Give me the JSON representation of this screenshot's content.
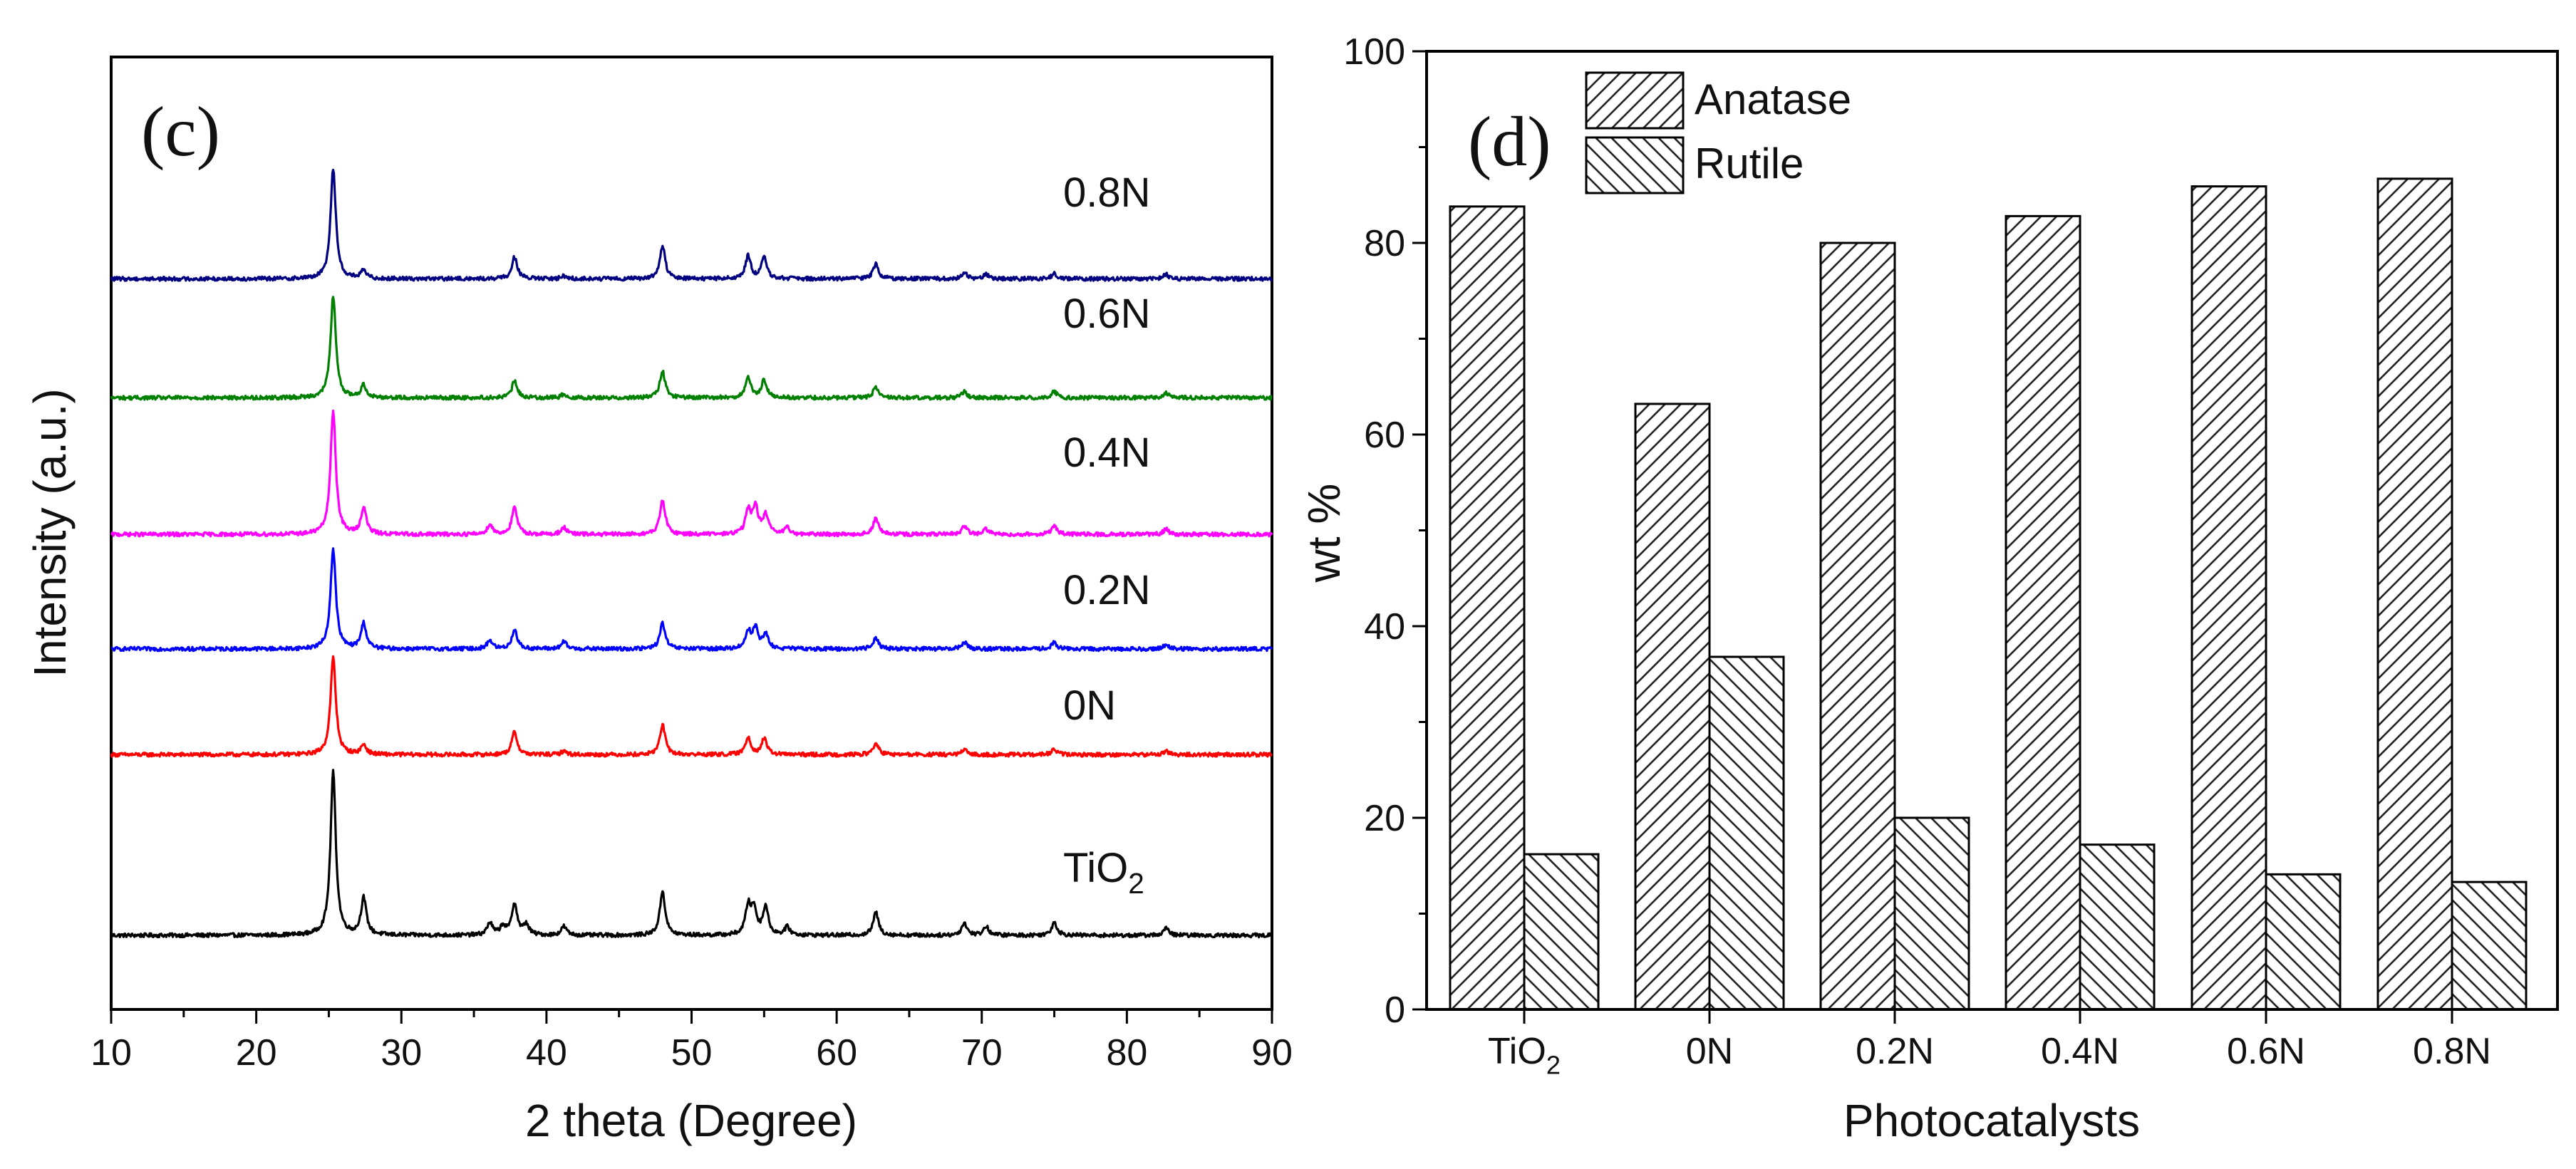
{
  "chart_data": [
    {
      "type": "line",
      "panel_label": "(c)",
      "xlabel": "2 theta (Degree)",
      "ylabel": "Intensity (a.u.)",
      "xlim": [
        10,
        90
      ],
      "x_ticks": [
        "10",
        "20",
        "30",
        "40",
        "50",
        "60",
        "70",
        "80",
        "90"
      ],
      "y_ticks_shown": false,
      "peak_positions_deg": [
        25.3,
        27.4,
        36.1,
        37.8,
        41.2,
        48.0,
        53.9,
        54.3,
        55.1,
        56.6,
        62.7,
        68.8,
        70.3,
        75.0,
        82.7
      ],
      "series": [
        {
          "name": "TiO",
          "subscript": "2",
          "color": "#000000",
          "baseline": 0.0,
          "peaks": [
            [
              25.3,
              18.5
            ],
            [
              27.4,
              4.2
            ],
            [
              36.1,
              1.4
            ],
            [
              37.0,
              1.0
            ],
            [
              37.8,
              3.6
            ],
            [
              38.6,
              1.2
            ],
            [
              41.2,
              1.0
            ],
            [
              48.0,
              5.0
            ],
            [
              53.9,
              3.2
            ],
            [
              54.3,
              2.8
            ],
            [
              55.1,
              3.2
            ],
            [
              56.6,
              0.9
            ],
            [
              62.7,
              2.6
            ],
            [
              68.8,
              1.4
            ],
            [
              70.3,
              1.0
            ],
            [
              75.0,
              1.5
            ],
            [
              82.7,
              0.8
            ]
          ]
        },
        {
          "name": "0N",
          "color": "#ff0000",
          "baseline": 20.5,
          "peaks": [
            [
              25.3,
              11.0
            ],
            [
              27.4,
              1.1
            ],
            [
              37.8,
              2.6
            ],
            [
              41.2,
              0.4
            ],
            [
              48.0,
              3.4
            ],
            [
              53.9,
              2.0
            ],
            [
              55.0,
              1.8
            ],
            [
              62.7,
              1.3
            ],
            [
              68.8,
              0.5
            ],
            [
              75.0,
              0.6
            ],
            [
              82.7,
              0.4
            ]
          ]
        },
        {
          "name": "0.2N",
          "color": "#0000ff",
          "baseline": 32.5,
          "peaks": [
            [
              25.3,
              11.3
            ],
            [
              27.4,
              2.9
            ],
            [
              36.1,
              1.0
            ],
            [
              37.8,
              2.2
            ],
            [
              41.2,
              0.8
            ],
            [
              48.0,
              2.9
            ],
            [
              53.9,
              1.9
            ],
            [
              54.4,
              2.3
            ],
            [
              55.1,
              1.6
            ],
            [
              62.7,
              1.3
            ],
            [
              68.8,
              0.8
            ],
            [
              75.0,
              0.7
            ],
            [
              82.7,
              0.5
            ]
          ]
        },
        {
          "name": "0.4N",
          "color": "#ff00ff",
          "baseline": 45.5,
          "peaks": [
            [
              25.3,
              14.0
            ],
            [
              27.4,
              3.0
            ],
            [
              36.1,
              1.1
            ],
            [
              37.8,
              3.0
            ],
            [
              41.2,
              0.8
            ],
            [
              48.0,
              3.9
            ],
            [
              53.9,
              2.6
            ],
            [
              54.4,
              3.0
            ],
            [
              55.1,
              2.2
            ],
            [
              56.6,
              0.7
            ],
            [
              62.7,
              1.8
            ],
            [
              68.8,
              0.9
            ],
            [
              70.3,
              0.6
            ],
            [
              75.0,
              1.0
            ],
            [
              82.7,
              0.6
            ]
          ]
        },
        {
          "name": "0.6N",
          "color": "#008000",
          "baseline": 61.0,
          "peaks": [
            [
              25.3,
              11.5
            ],
            [
              27.4,
              1.4
            ],
            [
              37.8,
              1.9
            ],
            [
              41.2,
              0.4
            ],
            [
              48.0,
              3.0
            ],
            [
              53.9,
              2.2
            ],
            [
              55.0,
              2.0
            ],
            [
              62.7,
              1.2
            ],
            [
              68.8,
              0.7
            ],
            [
              75.0,
              0.7
            ],
            [
              82.7,
              0.5
            ]
          ]
        },
        {
          "name": "0.8N",
          "color": "#000080",
          "baseline": 74.5,
          "peaks": [
            [
              25.3,
              12.5
            ],
            [
              27.4,
              0.9
            ],
            [
              37.8,
              2.5
            ],
            [
              41.2,
              0.3
            ],
            [
              48.0,
              3.7
            ],
            [
              53.9,
              2.6
            ],
            [
              55.0,
              2.4
            ],
            [
              62.7,
              1.7
            ],
            [
              68.8,
              0.7
            ],
            [
              70.3,
              0.5
            ],
            [
              75.0,
              0.6
            ],
            [
              82.7,
              0.5
            ]
          ]
        }
      ]
    },
    {
      "type": "bar",
      "panel_label": "(d)",
      "categories": [
        "TiO",
        "0N",
        "0.2N",
        "0.4N",
        "0.6N",
        "0.8N"
      ],
      "category_subscripts": [
        "2",
        "",
        "",
        "",
        "",
        ""
      ],
      "xlabel": "Photocatalysts",
      "ylabel": "wt %",
      "ylim": [
        0,
        100
      ],
      "y_ticks": [
        0,
        20,
        40,
        60,
        80,
        100
      ],
      "series": [
        {
          "name": "Anatase",
          "pattern": "hatch-forward",
          "values": [
            83.8,
            63.2,
            80.0,
            82.8,
            85.9,
            86.7
          ]
        },
        {
          "name": "Rutile",
          "pattern": "hatch-back",
          "values": [
            16.2,
            36.8,
            20.0,
            17.2,
            14.1,
            13.3
          ]
        }
      ],
      "legend": {
        "position": "top-left",
        "entries": [
          "Anatase",
          "Rutile"
        ]
      }
    }
  ]
}
